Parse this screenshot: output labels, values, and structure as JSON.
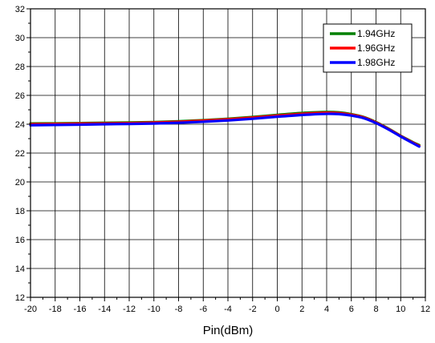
{
  "chart_data": {
    "type": "line",
    "title": "",
    "xlabel": "Pin(dBm)",
    "ylabel": "",
    "xlim": [
      -20,
      12
    ],
    "ylim": [
      12,
      32
    ],
    "x_ticks": [
      -20,
      -18,
      -16,
      -14,
      -12,
      -10,
      -8,
      -6,
      -4,
      -2,
      0,
      2,
      4,
      6,
      8,
      10,
      12
    ],
    "y_ticks": [
      12,
      14,
      16,
      18,
      20,
      22,
      24,
      26,
      28,
      30,
      32
    ],
    "grid": true,
    "legend_position": "top-right",
    "series": [
      {
        "name": "1.94GHz",
        "color": "#008000",
        "x": [
          -20,
          -18,
          -16,
          -14,
          -12,
          -10,
          -8,
          -6,
          -4,
          -2,
          0,
          2,
          4,
          5,
          6,
          7,
          8,
          9,
          10,
          11,
          11.5
        ],
        "y": [
          24.05,
          24.06,
          24.08,
          24.1,
          24.12,
          24.15,
          24.2,
          24.28,
          24.38,
          24.5,
          24.65,
          24.78,
          24.85,
          24.82,
          24.7,
          24.5,
          24.15,
          23.7,
          23.2,
          22.75,
          22.55
        ]
      },
      {
        "name": "1.96GHz",
        "color": "#ff0000",
        "x": [
          -20,
          -18,
          -16,
          -14,
          -12,
          -10,
          -8,
          -6,
          -4,
          -2,
          0,
          2,
          4,
          5,
          6,
          7,
          8,
          9,
          10,
          11,
          11.5
        ],
        "y": [
          24.0,
          24.02,
          24.04,
          24.06,
          24.08,
          24.12,
          24.17,
          24.25,
          24.34,
          24.46,
          24.6,
          24.72,
          24.8,
          24.77,
          24.66,
          24.47,
          24.12,
          23.67,
          23.18,
          22.72,
          22.5
        ]
      },
      {
        "name": "1.98GHz",
        "color": "#0000ff",
        "x": [
          -20,
          -18,
          -16,
          -14,
          -12,
          -10,
          -8,
          -6,
          -4,
          -2,
          0,
          2,
          4,
          5,
          6,
          7,
          8,
          9,
          10,
          11,
          11.5
        ],
        "y": [
          23.93,
          23.95,
          23.97,
          24.0,
          24.02,
          24.05,
          24.1,
          24.17,
          24.26,
          24.38,
          24.52,
          24.64,
          24.72,
          24.7,
          24.6,
          24.42,
          24.08,
          23.64,
          23.15,
          22.68,
          22.45
        ]
      }
    ]
  }
}
